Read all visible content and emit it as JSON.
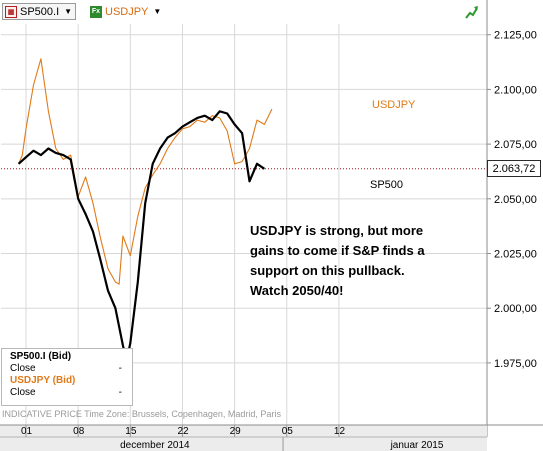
{
  "toolbar": {
    "instrument1": {
      "label": "SP500.I",
      "icon": "chart-icon"
    },
    "instrument2": {
      "label": "USDJPY",
      "icon": "fx-icon",
      "icon_text": "Fx"
    },
    "trend_icon": "green-trend-arrow-icon"
  },
  "legend": {
    "series1": {
      "title": "SP500.I (Bid)",
      "field": "Close",
      "value": "-"
    },
    "series2": {
      "title": "USDJPY (Bid)",
      "field": "Close",
      "value": "-"
    }
  },
  "footer_note": "INDICATIVE PRICE   Time Zone: Brussels, Copenhagen, Madrid, Paris",
  "annotations": {
    "usdjpy_label": "USDJPY",
    "sp500_label": "SP500",
    "comment_lines": [
      "USDJPY is strong, but more",
      "gains to come if S&P finds a",
      "support on this pullback.",
      "Watch 2050/40!"
    ]
  },
  "current_price": "2.063,72",
  "colors": {
    "sp500": "#000000",
    "usdjpy": "#e07a18",
    "ref_line": "#a01818",
    "grid": "#d8d8d8"
  },
  "chart_data": {
    "type": "line",
    "y_ticks": [
      "2.125,00",
      "2.100,00",
      "2.075,00",
      "2.050,00",
      "2.025,00",
      "2.000,00",
      "1.975,00"
    ],
    "y_tick_values": [
      2125,
      2100,
      2075,
      2050,
      2025,
      2000,
      1975
    ],
    "x_ticks": [
      "01",
      "08",
      "15",
      "22",
      "29",
      "05",
      "12"
    ],
    "x_tick_days": [
      1,
      8,
      15,
      22,
      29,
      36,
      43
    ],
    "x_period_labels": [
      "december 2014",
      "januar 2015"
    ],
    "reference_value": 2063.72,
    "ylim": [
      1960,
      2133
    ],
    "series": [
      {
        "name": "SP500",
        "x": [
          0,
          1,
          2,
          3,
          4,
          5,
          6,
          7,
          8,
          9,
          10,
          11,
          12,
          13,
          14,
          14.5,
          15,
          16,
          17,
          18,
          19,
          20,
          21,
          22,
          23,
          24,
          25,
          26,
          27,
          28,
          29,
          30,
          31,
          32,
          33
        ],
        "values": [
          2066,
          2069,
          2072,
          2070,
          2073,
          2071,
          2070,
          2068,
          2050,
          2043,
          2035,
          2022,
          2008,
          2000,
          1983,
          1976,
          1984,
          2012,
          2048,
          2066,
          2073,
          2078,
          2080,
          2083,
          2085,
          2087,
          2088,
          2086,
          2090,
          2089,
          2084,
          2080,
          2058,
          2066,
          2063.72
        ]
      },
      {
        "name": "USDJPY",
        "x": [
          0,
          0.5,
          1,
          2,
          3,
          4,
          5,
          6,
          7,
          8,
          9,
          10,
          11,
          12,
          13,
          13.5,
          14,
          15,
          16,
          17,
          18,
          19,
          20,
          21,
          22,
          23,
          24,
          25,
          26,
          27,
          28,
          29,
          30,
          31,
          32,
          33,
          34
        ],
        "values": [
          2066,
          2070,
          2082,
          2102,
          2114,
          2090,
          2073,
          2068,
          2070,
          2051,
          2060,
          2048,
          2032,
          2018,
          2012,
          2011,
          2033,
          2024,
          2042,
          2055,
          2061,
          2066,
          2073,
          2078,
          2082,
          2083,
          2086,
          2085,
          2088,
          2087,
          2081,
          2066,
          2067,
          2073,
          2086,
          2084,
          2091
        ]
      }
    ]
  }
}
